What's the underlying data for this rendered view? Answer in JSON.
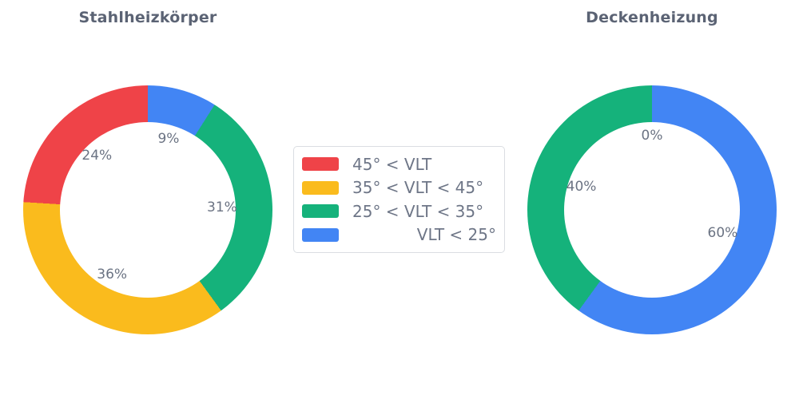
{
  "colors": {
    "red": "#EF4348",
    "yellow": "#FABB1D",
    "green": "#15B27B",
    "blue": "#4285F4",
    "background": "#FFFFFF",
    "title_text": "#5B6374",
    "slice_label_text": "#6B7383",
    "legend_text": "#6E7687",
    "legend_border": "#DADDE2"
  },
  "legend": {
    "items": [
      {
        "label": "45° < VLT",
        "color": "#EF4348",
        "swatch": "red-swatch"
      },
      {
        "label": "35° < VLT < 45°",
        "color": "#FABB1D",
        "swatch": "yellow-swatch"
      },
      {
        "label": "25° < VLT < 35°",
        "color": "#15B27B",
        "swatch": "green-swatch"
      },
      {
        "label": "VLT < 25°",
        "color": "#4285F4",
        "swatch": "blue-swatch"
      }
    ]
  },
  "chart_data": [
    {
      "type": "pie",
      "title": "Stahlheizkörper",
      "hole": 0.7,
      "direction": "counterclockwise",
      "start_angle": "top",
      "categories": [
        "45° < VLT",
        "35° < VLT < 45°",
        "25° < VLT < 35°",
        "VLT < 25°"
      ],
      "values": [
        24,
        36,
        31,
        9
      ],
      "labels": [
        "24%",
        "36%",
        "31%",
        "9%"
      ],
      "colors": [
        "#EF4348",
        "#FABB1D",
        "#15B27B",
        "#4285F4"
      ],
      "label_position": "inside"
    },
    {
      "type": "pie",
      "title": "Deckenheizung",
      "hole": 0.7,
      "direction": "counterclockwise",
      "start_angle": "top",
      "categories": [
        "45° < VLT",
        "35° < VLT < 45°",
        "25° < VLT < 35°",
        "VLT < 25°"
      ],
      "values": [
        0,
        0,
        40,
        60
      ],
      "labels": [
        "0%",
        "0%",
        "40%",
        "60%"
      ],
      "colors": [
        "#EF4348",
        "#FABB1D",
        "#15B27B",
        "#4285F4"
      ],
      "label_position": "inside"
    }
  ]
}
